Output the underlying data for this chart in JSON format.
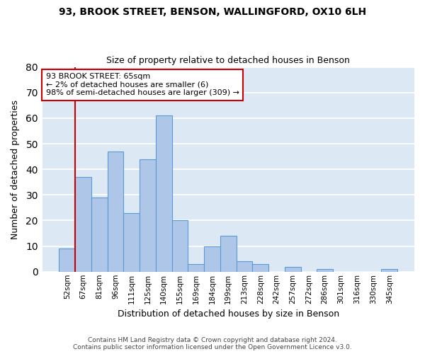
{
  "title1": "93, BROOK STREET, BENSON, WALLINGFORD, OX10 6LH",
  "title2": "Size of property relative to detached houses in Benson",
  "xlabel": "Distribution of detached houses by size in Benson",
  "ylabel": "Number of detached properties",
  "bar_labels": [
    "52sqm",
    "67sqm",
    "81sqm",
    "96sqm",
    "111sqm",
    "125sqm",
    "140sqm",
    "155sqm",
    "169sqm",
    "184sqm",
    "199sqm",
    "213sqm",
    "228sqm",
    "242sqm",
    "257sqm",
    "272sqm",
    "286sqm",
    "301sqm",
    "316sqm",
    "330sqm",
    "345sqm"
  ],
  "bar_values": [
    9,
    37,
    29,
    47,
    23,
    44,
    61,
    20,
    3,
    10,
    14,
    4,
    3,
    0,
    2,
    0,
    1,
    0,
    0,
    0,
    1
  ],
  "bar_color": "#aec6e8",
  "bar_edge_color": "#5b9bd5",
  "plot_bg_color": "#dce9f5",
  "fig_bg_color": "#ffffff",
  "grid_color": "#ffffff",
  "annotation_text": "93 BROOK STREET: 65sqm\n← 2% of detached houses are smaller (6)\n98% of semi-detached houses are larger (309) →",
  "annotation_box_color": "#ffffff",
  "annotation_box_edge_color": "#cc0000",
  "vline_color": "#cc0000",
  "vline_x_index": 1,
  "ylim": [
    0,
    80
  ],
  "yticks": [
    0,
    10,
    20,
    30,
    40,
    50,
    60,
    70,
    80
  ],
  "footer1": "Contains HM Land Registry data © Crown copyright and database right 2024.",
  "footer2": "Contains public sector information licensed under the Open Government Licence v3.0."
}
